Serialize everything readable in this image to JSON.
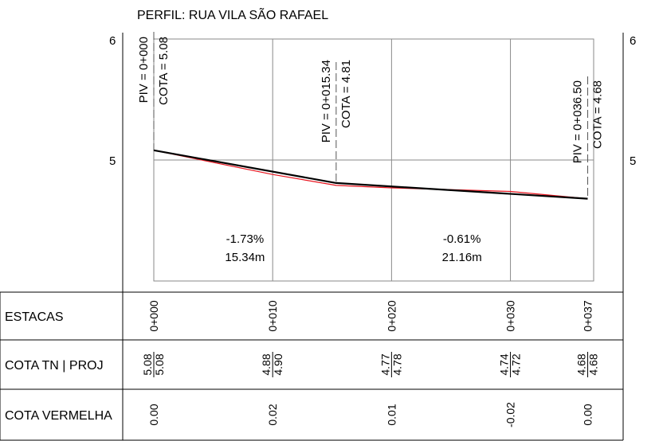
{
  "title": "PERFIL: RUA VILA SÃO RAFAEL",
  "y_axis": {
    "min": 4.0,
    "max": 6.0,
    "tick_labels": [
      "6",
      "5"
    ]
  },
  "chart_data": {
    "type": "line",
    "title": "PERFIL: RUA VILA SÃO RAFAEL",
    "x_unit": "m",
    "y_unit": "m",
    "xlim": [
      0,
      37
    ],
    "ylim": [
      4.0,
      6.0
    ],
    "grid": true,
    "series": [
      {
        "role": "terreno",
        "color": "#e8141e",
        "x": [
          0,
          10,
          15.34,
          20,
          30,
          36.5
        ],
        "y": [
          5.08,
          4.88,
          4.79,
          4.77,
          4.74,
          4.68
        ]
      },
      {
        "role": "projeto",
        "color": "#000000",
        "x": [
          0,
          15.34,
          36.5
        ],
        "y": [
          5.08,
          4.81,
          4.68
        ]
      }
    ]
  },
  "pivs": [
    {
      "x": 0,
      "piv": "PIV = 0+000",
      "cota": "COTA =  5.08"
    },
    {
      "x": 15.34,
      "piv": "PIV = 0+015.34",
      "cota": "COTA =  4.81"
    },
    {
      "x": 36.5,
      "piv": "PIV = 0+036.50",
      "cota": "COTA =  4.68"
    }
  ],
  "segments": [
    {
      "x_mid": 7.67,
      "slope": "-1.73%",
      "length": "15.34m"
    },
    {
      "x_mid": 25.92,
      "slope": "-0.61%",
      "length": "21.16m"
    }
  ],
  "table": {
    "rows": [
      "ESTACAS",
      "COTA TN | PROJ",
      "COTA VERMELHA"
    ],
    "stations": [
      {
        "x": 0,
        "estaca": "0+000",
        "tn": "5.08",
        "proj": "5.08",
        "vermelha": "0.00"
      },
      {
        "x": 10,
        "estaca": "0+010",
        "tn": "4.88",
        "proj": "4.90",
        "vermelha": "0.02"
      },
      {
        "x": 20,
        "estaca": "0+020",
        "tn": "4.77",
        "proj": "4.78",
        "vermelha": "0.01"
      },
      {
        "x": 30,
        "estaca": "0+030",
        "tn": "4.74",
        "proj": "4.72",
        "vermelha": "-0.02"
      },
      {
        "x": 36.5,
        "estaca": "0+037",
        "tn": "4.68",
        "proj": "4.68",
        "vermelha": "0.00"
      }
    ]
  }
}
